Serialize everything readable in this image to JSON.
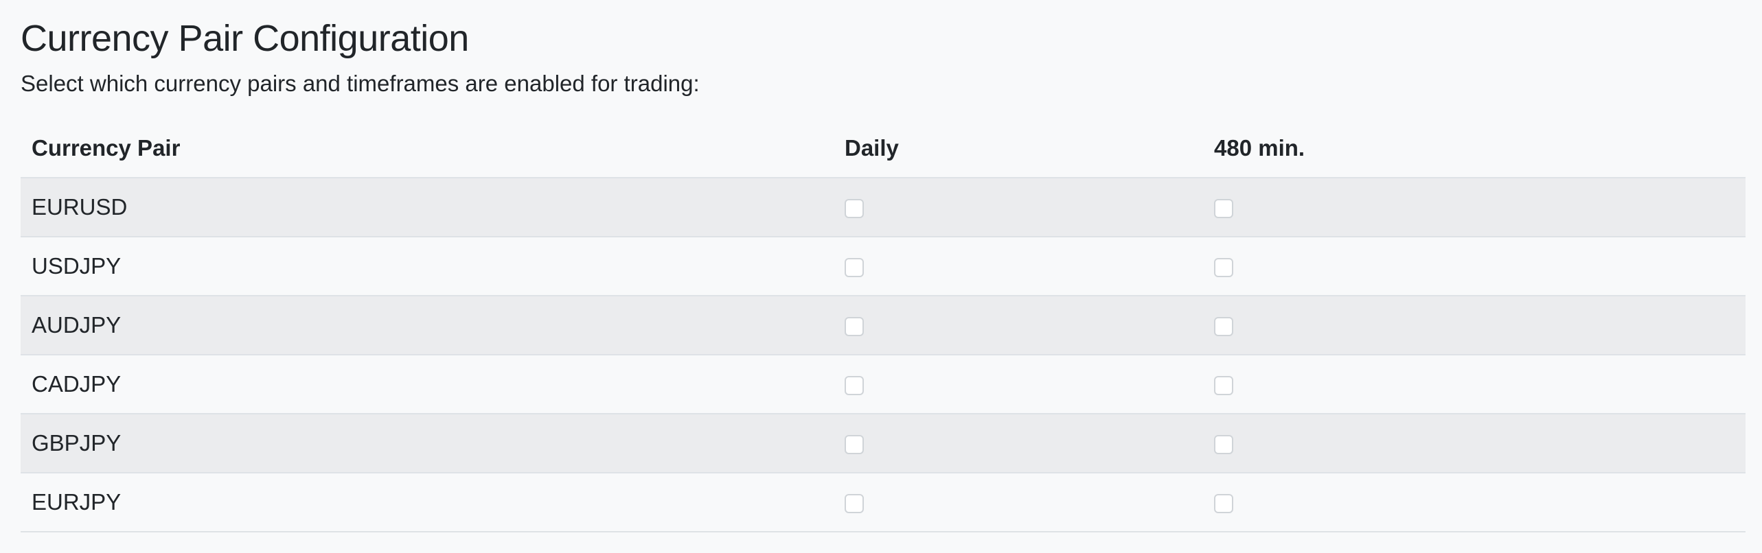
{
  "page": {
    "title": "Currency Pair Configuration",
    "subtitle": "Select which currency pairs and timeframes are enabled for trading:"
  },
  "table": {
    "headers": {
      "pair": "Currency Pair",
      "daily": "Daily",
      "min480": "480 min."
    },
    "rows": [
      {
        "pair": "EURUSD",
        "daily": false,
        "min480": false
      },
      {
        "pair": "USDJPY",
        "daily": false,
        "min480": false
      },
      {
        "pair": "AUDJPY",
        "daily": false,
        "min480": false
      },
      {
        "pair": "CADJPY",
        "daily": false,
        "min480": false
      },
      {
        "pair": "GBPJPY",
        "daily": false,
        "min480": false
      },
      {
        "pair": "EURJPY",
        "daily": false,
        "min480": false
      }
    ]
  }
}
